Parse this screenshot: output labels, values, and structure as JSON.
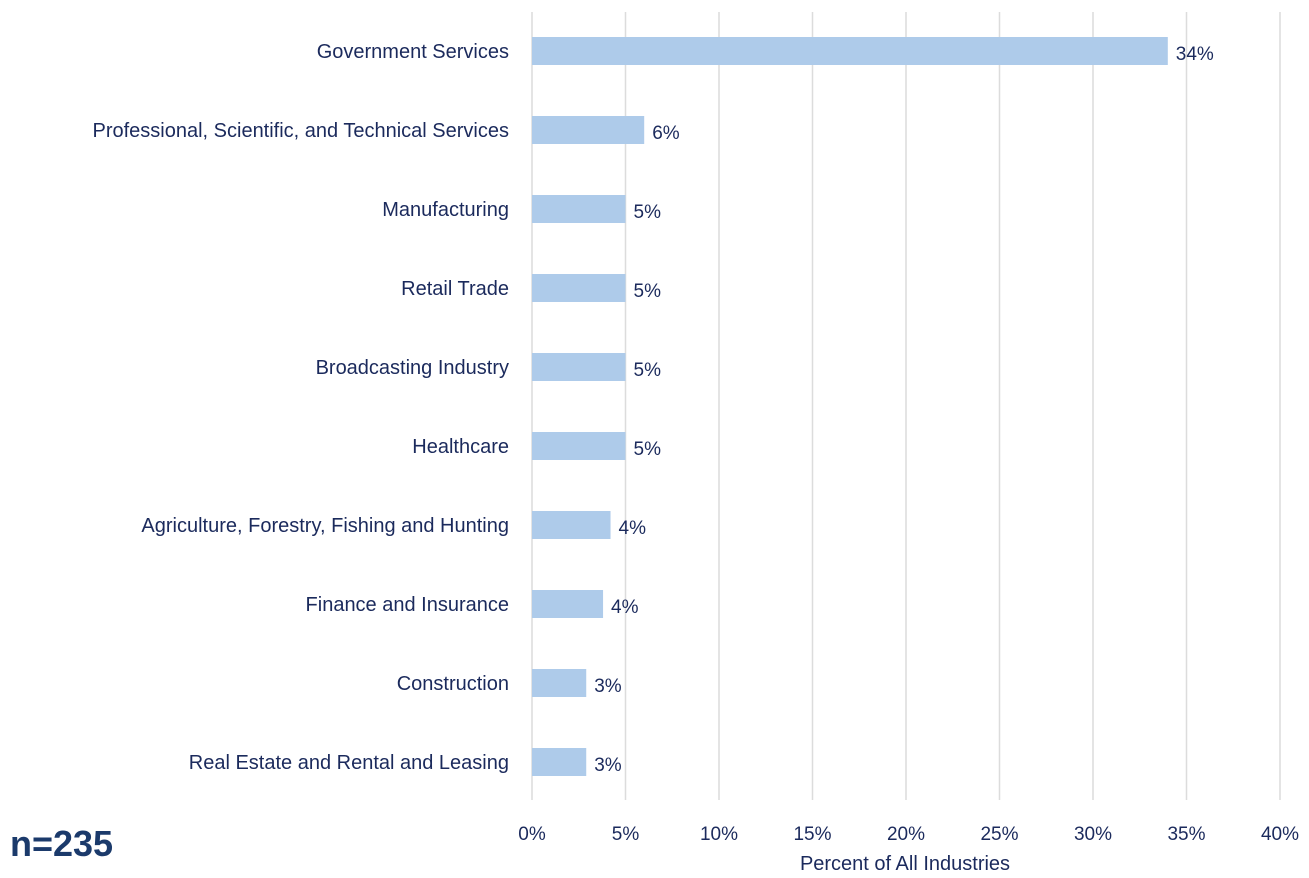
{
  "note": {
    "sample_size": "n=235"
  },
  "chart_data": {
    "type": "bar",
    "orientation": "horizontal",
    "categories": [
      "Government Services",
      "Professional, Scientific, and Technical Services",
      "Manufacturing",
      "Retail Trade",
      "Broadcasting Industry",
      "Healthcare",
      "Agriculture, Forestry, Fishing and Hunting",
      "Finance and Insurance",
      "Construction",
      "Real Estate and Rental and Leasing"
    ],
    "values": [
      34,
      6,
      5,
      5,
      5,
      5,
      4.2,
      3.8,
      2.9,
      2.9
    ],
    "value_labels": [
      "34%",
      "6%",
      "5%",
      "5%",
      "5%",
      "5%",
      "4%",
      "4%",
      "3%",
      "3%"
    ],
    "title": "",
    "xlabel": "Percent of All Industries",
    "ylabel": "",
    "xlim": [
      0,
      40
    ],
    "x_ticks": [
      0,
      5,
      10,
      15,
      20,
      25,
      30,
      35,
      40
    ],
    "x_tick_labels": [
      "0%",
      "5%",
      "10%",
      "15%",
      "20%",
      "25%",
      "30%",
      "35%",
      "40%"
    ],
    "grid": "vertical",
    "legend": "none",
    "colors": {
      "bar": "#aecbea",
      "text": "#1b2a5c",
      "grid": "#dcdcdc",
      "sample_size_text": "#1b3a6b"
    }
  }
}
